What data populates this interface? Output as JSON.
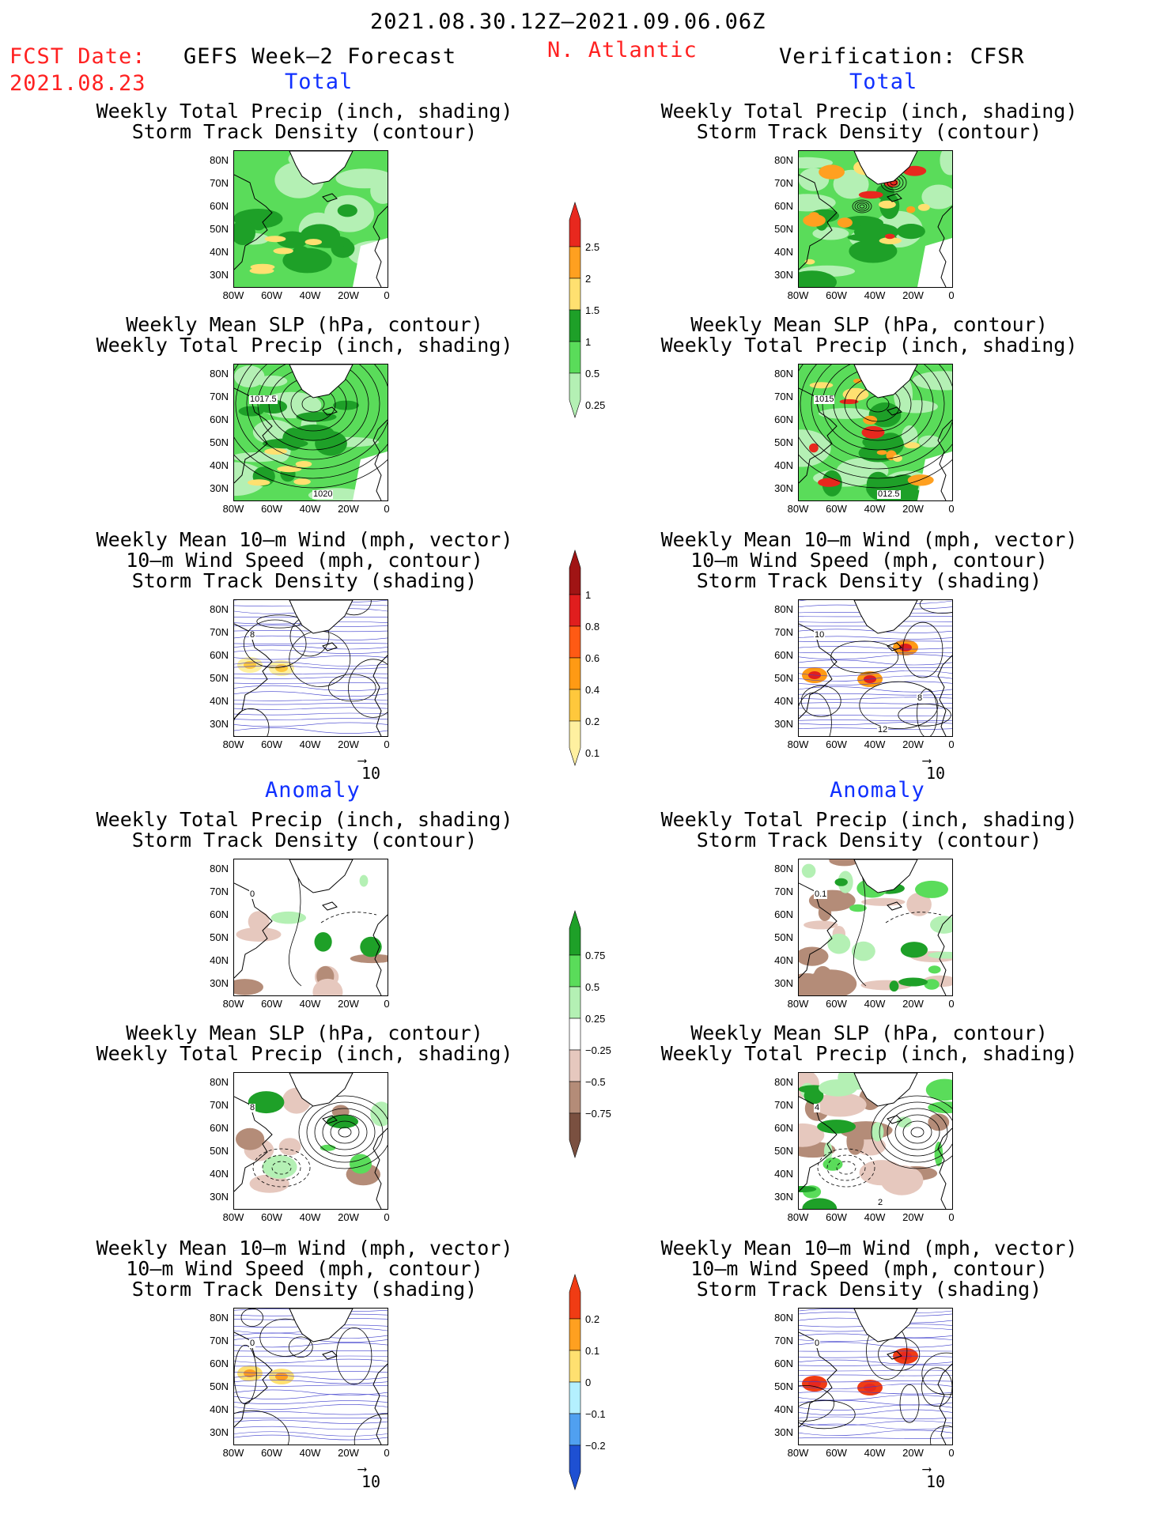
{
  "header": {
    "date_range": "2021.08.30.12Z—2021.09.06.06Z",
    "fcst_label": "FCST Date:",
    "fcst_date": "2021.08.23",
    "left_title": "GEFS Week—2 Forecast",
    "region": "N. Atlantic",
    "right_title": "Verification: CFSR"
  },
  "sections": {
    "total": "Total",
    "anomaly": "Anomaly"
  },
  "panel_titles": {
    "precip_storm": [
      "Weekly Total Precip (inch, shading)",
      "Storm Track Density (contour)"
    ],
    "slp_precip": [
      "Weekly Mean SLP (hPa, contour)",
      "Weekly Total Precip (inch, shading)"
    ],
    "wind_storm": [
      "Weekly Mean 10—m Wind (mph, vector)",
      "10—m Wind Speed (mph, contour)",
      "Storm Track Density (shading)"
    ]
  },
  "axes": {
    "lat_ticks": [
      "80N",
      "70N",
      "60N",
      "50N",
      "40N",
      "30N"
    ],
    "lon_ticks": [
      "80W",
      "60W",
      "40W",
      "20W",
      "0"
    ]
  },
  "vector_ref": "10",
  "contour_labels": {
    "fc_total_slp": [
      "1017.5",
      "1020"
    ],
    "ob_total_slp": [
      "1015",
      "012.5"
    ],
    "fc_total_wind": [
      "8"
    ],
    "ob_total_wind": [
      "10",
      "12",
      "8"
    ],
    "ob_anom_precip": [
      "0.1"
    ],
    "fc_anom_precip": [
      "0"
    ],
    "fc_anom_slp": [
      "8"
    ],
    "ob_anom_slp": [
      "4",
      "2"
    ],
    "fc_anom_wind": [
      "0"
    ],
    "ob_anom_wind": [
      "0"
    ]
  },
  "colorbars": {
    "precip_total": {
      "labels": [
        "2.5",
        "2",
        "1.5",
        "1",
        "0.5",
        "0.25"
      ],
      "colors": [
        "#e8281e",
        "#ffa020",
        "#ffe070",
        "#1ea028",
        "#5adc5a",
        "#b4f0b4"
      ]
    },
    "storm_total": {
      "labels": [
        "1",
        "0.8",
        "0.6",
        "0.4",
        "0.2",
        "0.1"
      ],
      "colors": [
        "#a01414",
        "#e01e1e",
        "#ff5a14",
        "#ff9a14",
        "#ffc83c",
        "#fff0a0"
      ]
    },
    "precip_anom": {
      "labels": [
        "0.75",
        "0.5",
        "0.25",
        "−0.25",
        "−0.5",
        "−0.75"
      ],
      "colors": [
        "#1ea028",
        "#5adc5a",
        "#b4f0b4",
        "#ffffff",
        "#e6c8be",
        "#b48c78",
        "#7a5040"
      ]
    },
    "storm_anom": {
      "labels": [
        "0.2",
        "0.1",
        "0",
        "−0.1",
        "−0.2"
      ],
      "colors": [
        "#f03c14",
        "#ffa020",
        "#ffe070",
        "#b4f0ff",
        "#50a0f0",
        "#1e50d2"
      ]
    }
  }
}
